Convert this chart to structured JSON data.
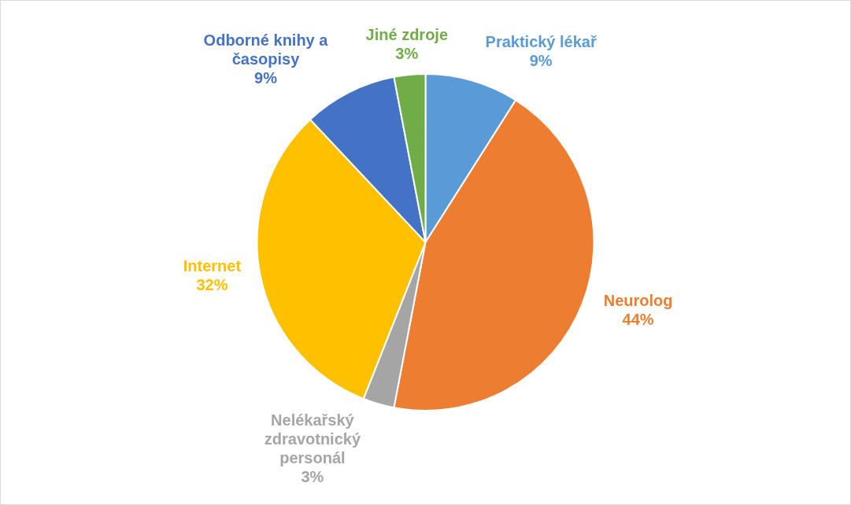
{
  "chart_data": {
    "type": "pie",
    "categories": [
      "Praktický lékař",
      "Neurolog",
      "Nelékařský zdravotnický personál",
      "Internet",
      "Odborné knihy a časopisy",
      "Jiné zdroje"
    ],
    "values": [
      9,
      44,
      3,
      32,
      9,
      3
    ],
    "colors": [
      "#5b9bd5",
      "#ed7d31",
      "#a5a5a5",
      "#ffc000",
      "#4472c4",
      "#70ad47"
    ],
    "value_labels": [
      "9%",
      "44%",
      "3%",
      "32%",
      "9%",
      "3%"
    ],
    "legend": false
  }
}
